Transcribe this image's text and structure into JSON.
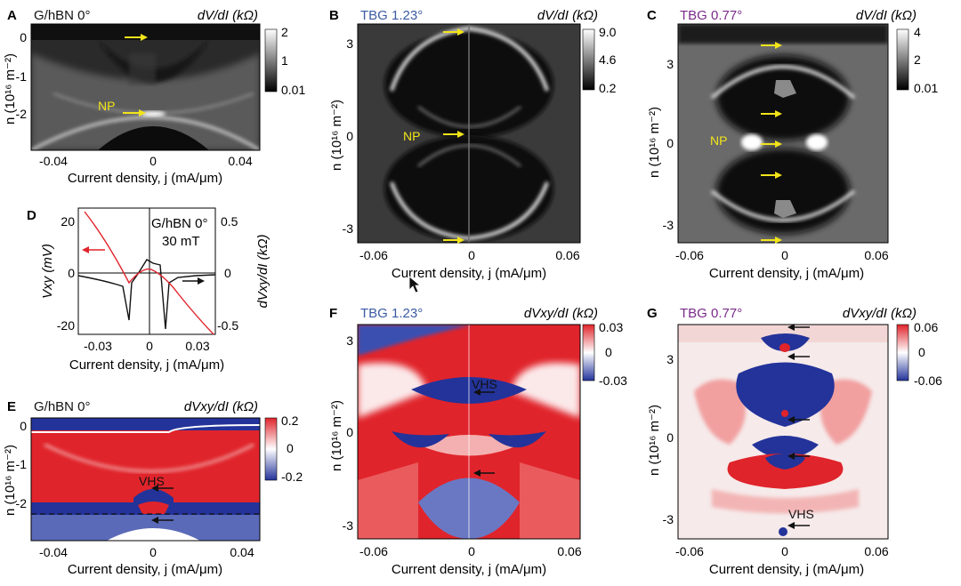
{
  "figure": {
    "panels": [
      {
        "letter": "A",
        "title": "G/hBN 0°",
        "title_color": "#111111",
        "cbar_title": "dV/dI (kΩ)",
        "cbar_ticks": [
          "2",
          "1",
          "0.01"
        ],
        "xticks": [
          "-0.04",
          "0",
          "0.04"
        ],
        "yticks": [
          "0",
          "-1",
          "-2"
        ],
        "xlabel": "Current density, j (mA/μm)",
        "ylabel": "n (10¹⁶ m⁻²)",
        "annot": "NP"
      },
      {
        "letter": "B",
        "title": "TBG 1.23°",
        "title_color": "#3b5ba5",
        "cbar_title": "dV/dI (kΩ)",
        "cbar_ticks": [
          "9.0",
          "4.6",
          "0.2"
        ],
        "xticks": [
          "-0.06",
          "0",
          "0.06"
        ],
        "yticks": [
          "3",
          "0",
          "-3"
        ],
        "xlabel": "Current density, j (mA/μm)",
        "ylabel": "n (10¹⁶ m⁻²)",
        "annot": "NP"
      },
      {
        "letter": "C",
        "title": "TBG 0.77°",
        "title_color": "#7a2a8a",
        "cbar_title": "dV/dI (kΩ)",
        "cbar_ticks": [
          "4",
          "2",
          "0.01"
        ],
        "xticks": [
          "-0.06",
          "0",
          "0.06"
        ],
        "yticks": [
          "3",
          "0",
          "-3"
        ],
        "xlabel": "Current density, j (mA/μm)",
        "ylabel": "n (10¹⁶ m⁻²)",
        "annot": "NP"
      },
      {
        "letter": "D",
        "title": "G/hBN 0°",
        "subtitle": "30 mT",
        "xticks": [
          "-0.03",
          "0",
          "0.03"
        ],
        "yticks_left": [
          "20",
          "0",
          "-20"
        ],
        "yticks_right": [
          "0.5",
          "0",
          "-0.5"
        ],
        "xlabel": "Current density, j (mA/μm)",
        "ylabel_left": "Vxy (mV)",
        "ylabel_right": "dVxy/dI (kΩ)"
      },
      {
        "letter": "E",
        "title": "G/hBN 0°",
        "title_color": "#111111",
        "cbar_title": "dVxy/dI (kΩ)",
        "cbar_ticks": [
          "0.2",
          "0",
          "-0.2"
        ],
        "xticks": [
          "-0.04",
          "0",
          "0.04"
        ],
        "yticks": [
          "0",
          "-1",
          "-2"
        ],
        "xlabel": "Current density, j (mA/μm)",
        "ylabel": "n (10¹⁶ m⁻²)",
        "annot": "VHS"
      },
      {
        "letter": "F",
        "title": "TBG 1.23°",
        "title_color": "#3b5ba5",
        "cbar_title": "dVxy/dI (kΩ)",
        "cbar_ticks": [
          "0.03",
          "0",
          "-0.03"
        ],
        "xticks": [
          "-0.06",
          "0",
          "0.06"
        ],
        "yticks": [
          "3",
          "0",
          "-3"
        ],
        "xlabel": "Current density, j (mA/μm)",
        "ylabel": "n (10¹⁶ m⁻²)",
        "annot": "VHS"
      },
      {
        "letter": "G",
        "title": "TBG 0.77°",
        "title_color": "#7a2a8a",
        "cbar_title": "dVxy/dI (kΩ)",
        "cbar_ticks": [
          "0.06",
          "0",
          "-0.06"
        ],
        "xticks": [
          "-0.06",
          "0",
          "0.06"
        ],
        "yticks": [
          "3",
          "0",
          "-3"
        ],
        "xlabel": "Current density, j (mA/μm)",
        "ylabel": "n (10¹⁶ m⁻²)",
        "annot": "VHS"
      }
    ]
  },
  "colors": {
    "red": "#e0242b",
    "blue": "#2b3fa0",
    "arrow_yellow": "#f2e41a",
    "label_yellow": "#f2e41a"
  }
}
